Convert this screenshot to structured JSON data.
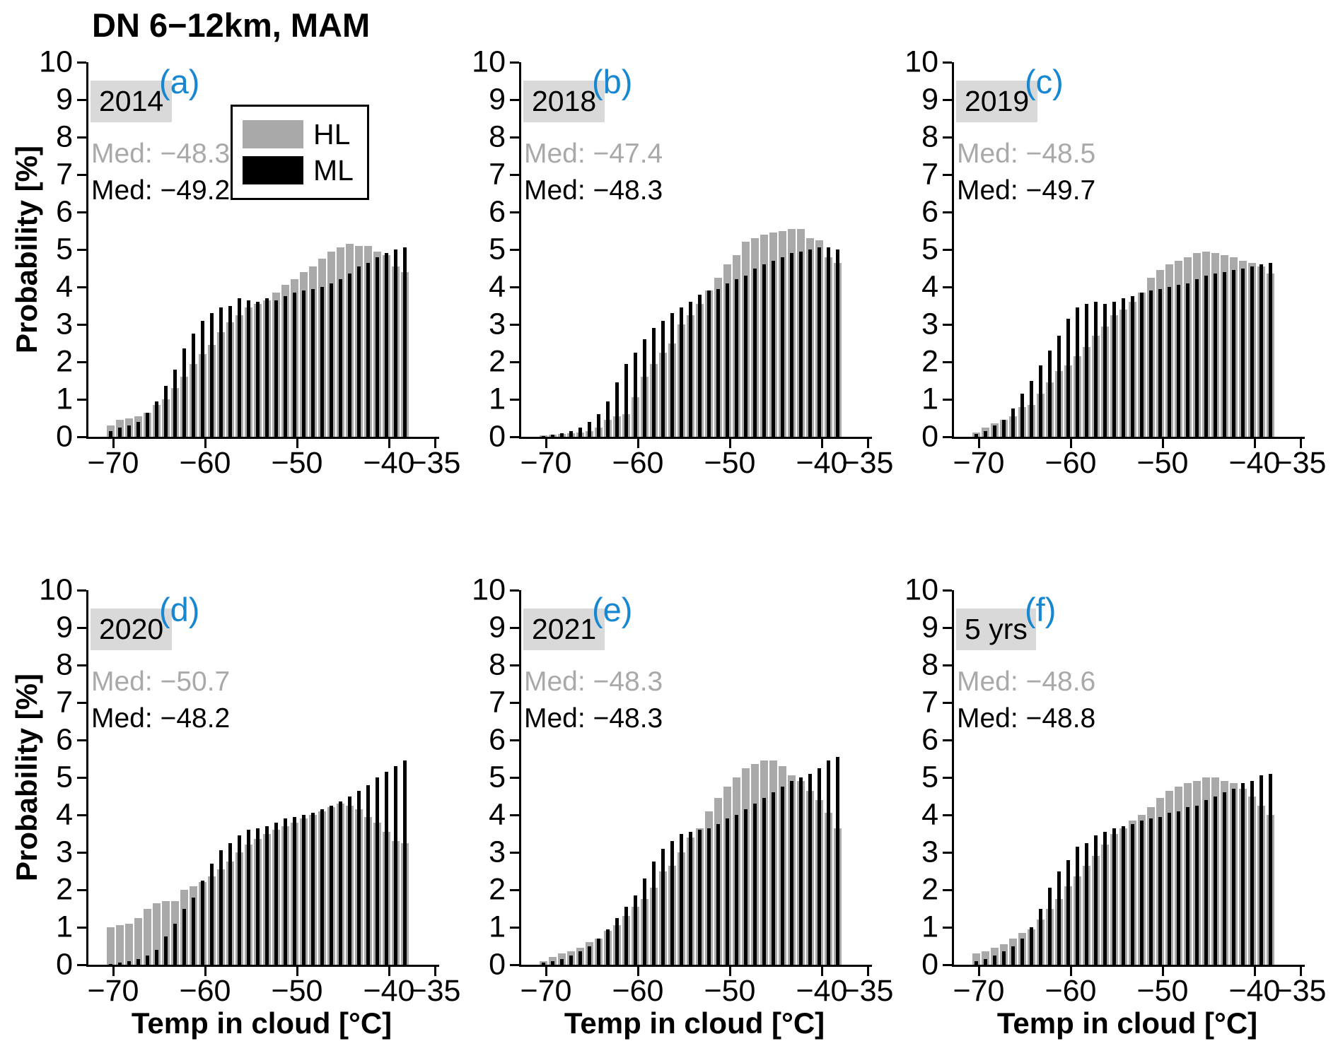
{
  "title": "DN 6−12km, MAM",
  "ylabel": "Probability [%]",
  "xlabel": "Temp in cloud [°C]",
  "legend": {
    "hl_label": "HL",
    "ml_label": "ML"
  },
  "colors": {
    "hl_bar": "#a9a9a9",
    "ml_bar": "#000000",
    "panel_letter": "#1787d1",
    "badge_bg": "#d9d9d9",
    "med_hl_text": "#a9a9a9",
    "med_ml_text": "#000000"
  },
  "axes": {
    "ylim": [
      0,
      10
    ],
    "y_ticks": [
      0,
      1,
      2,
      3,
      4,
      5,
      6,
      7,
      8,
      9,
      10
    ],
    "x_ticks": [
      {
        "value": -70,
        "label": "−70"
      },
      {
        "value": -60,
        "label": "−60"
      },
      {
        "value": -50,
        "label": "−50"
      },
      {
        "value": -40,
        "label": "−40"
      },
      {
        "value": -35,
        "label": "−35"
      }
    ],
    "x_bin_start": -70.3,
    "x_bin_step": 1,
    "x_unit": "°C"
  },
  "chart_data": [
    {
      "type": "bar",
      "letter": "(a)",
      "year": "2014",
      "med_hl": "Med: −48.3",
      "med_ml": "Med: −49.2",
      "series": [
        {
          "name": "HL",
          "values": [
            0.3,
            0.45,
            0.5,
            0.55,
            0.65,
            0.85,
            1.0,
            1.3,
            1.6,
            1.95,
            2.2,
            2.45,
            2.8,
            3.05,
            3.25,
            3.45,
            3.55,
            3.65,
            3.85,
            4.05,
            4.2,
            4.4,
            4.55,
            4.75,
            4.95,
            5.05,
            5.15,
            5.1,
            5.1,
            4.95,
            4.85,
            4.55,
            4.4
          ]
        },
        {
          "name": "ML",
          "values": [
            0.15,
            0.25,
            0.3,
            0.4,
            0.65,
            0.95,
            1.35,
            1.8,
            2.35,
            2.75,
            3.1,
            3.3,
            3.45,
            3.5,
            3.7,
            3.65,
            3.6,
            3.7,
            3.65,
            3.75,
            3.85,
            3.9,
            3.95,
            4.0,
            4.1,
            4.2,
            4.35,
            4.55,
            4.65,
            4.8,
            4.9,
            5.0,
            5.05
          ]
        }
      ]
    },
    {
      "type": "bar",
      "letter": "(b)",
      "year": "2018",
      "med_hl": "Med: −47.4",
      "med_ml": "Med: −48.3",
      "series": [
        {
          "name": "HL",
          "values": [
            0.03,
            0.05,
            0.07,
            0.1,
            0.12,
            0.15,
            0.25,
            0.45,
            0.55,
            0.6,
            1.05,
            1.6,
            1.95,
            2.25,
            2.5,
            3.0,
            3.25,
            3.55,
            3.9,
            4.25,
            4.6,
            4.85,
            5.2,
            5.3,
            5.4,
            5.45,
            5.5,
            5.55,
            5.55,
            5.3,
            5.25,
            4.8,
            4.65
          ]
        },
        {
          "name": "ML",
          "values": [
            0.02,
            0.05,
            0.1,
            0.15,
            0.25,
            0.4,
            0.6,
            0.95,
            1.45,
            1.95,
            2.25,
            2.6,
            2.9,
            3.1,
            3.3,
            3.45,
            3.6,
            3.8,
            3.9,
            3.95,
            4.1,
            4.2,
            4.3,
            4.5,
            4.6,
            4.7,
            4.8,
            4.9,
            4.95,
            5.0,
            5.05,
            5.05,
            5.0
          ]
        }
      ]
    },
    {
      "type": "bar",
      "letter": "(c)",
      "year": "2019",
      "med_hl": "Med: −48.5",
      "med_ml": "Med: −49.7",
      "series": [
        {
          "name": "HL",
          "values": [
            0.12,
            0.25,
            0.35,
            0.45,
            0.55,
            0.8,
            0.85,
            1.15,
            1.45,
            1.75,
            1.9,
            2.15,
            2.4,
            2.7,
            2.95,
            3.25,
            3.4,
            3.6,
            3.85,
            4.25,
            4.45,
            4.6,
            4.7,
            4.8,
            4.9,
            4.95,
            4.9,
            4.85,
            4.8,
            4.7,
            4.65,
            4.55,
            4.35
          ]
        },
        {
          "name": "ML",
          "values": [
            0.08,
            0.15,
            0.3,
            0.45,
            0.75,
            1.15,
            1.5,
            1.9,
            2.3,
            2.7,
            3.15,
            3.45,
            3.55,
            3.6,
            3.55,
            3.6,
            3.7,
            3.75,
            3.85,
            3.9,
            3.95,
            4.0,
            4.05,
            4.1,
            4.2,
            4.3,
            4.35,
            4.4,
            4.45,
            4.5,
            4.55,
            4.6,
            4.65
          ]
        }
      ]
    },
    {
      "type": "bar",
      "letter": "(d)",
      "year": "2020",
      "med_hl": "Med: −50.7",
      "med_ml": "Med: −48.2",
      "series": [
        {
          "name": "HL",
          "values": [
            1.0,
            1.05,
            1.1,
            1.25,
            1.5,
            1.65,
            1.7,
            1.7,
            2.0,
            2.1,
            2.2,
            2.35,
            2.55,
            2.75,
            3.0,
            3.2,
            3.35,
            3.5,
            3.6,
            3.7,
            3.8,
            3.9,
            4.0,
            4.1,
            4.2,
            4.3,
            4.25,
            4.15,
            3.95,
            3.8,
            3.55,
            3.3,
            3.25
          ]
        },
        {
          "name": "ML",
          "values": [
            0.02,
            0.05,
            0.1,
            0.15,
            0.25,
            0.4,
            0.75,
            1.1,
            1.5,
            1.8,
            2.25,
            2.7,
            3.05,
            3.25,
            3.45,
            3.6,
            3.65,
            3.7,
            3.8,
            3.9,
            3.95,
            4.0,
            4.05,
            4.15,
            4.25,
            4.35,
            4.5,
            4.65,
            4.8,
            5.0,
            5.15,
            5.3,
            5.45
          ]
        }
      ]
    },
    {
      "type": "bar",
      "letter": "(e)",
      "year": "2021",
      "med_hl": "Med: −48.3",
      "med_ml": "Med: −48.3",
      "series": [
        {
          "name": "HL",
          "values": [
            0.1,
            0.2,
            0.3,
            0.35,
            0.45,
            0.6,
            0.7,
            0.9,
            1.05,
            1.3,
            1.55,
            1.75,
            2.05,
            2.5,
            2.65,
            3.0,
            3.4,
            3.65,
            4.1,
            4.45,
            4.75,
            5.0,
            5.25,
            5.35,
            5.45,
            5.45,
            5.3,
            5.05,
            4.9,
            4.65,
            4.4,
            4.05,
            3.65
          ]
        },
        {
          "name": "ML",
          "values": [
            0.05,
            0.1,
            0.15,
            0.25,
            0.35,
            0.5,
            0.7,
            0.95,
            1.25,
            1.55,
            1.85,
            2.3,
            2.75,
            3.1,
            3.3,
            3.5,
            3.55,
            3.6,
            3.65,
            3.75,
            3.9,
            4.0,
            4.15,
            4.3,
            4.45,
            4.6,
            4.75,
            4.9,
            5.0,
            5.1,
            5.25,
            5.45,
            5.55
          ]
        }
      ]
    },
    {
      "type": "bar",
      "letter": "(f)",
      "year": "5 yrs",
      "med_hl": "Med: −48.6",
      "med_ml": "Med: −48.8",
      "series": [
        {
          "name": "HL",
          "values": [
            0.3,
            0.35,
            0.45,
            0.55,
            0.7,
            0.85,
            0.95,
            1.2,
            1.5,
            1.75,
            2.1,
            2.35,
            2.65,
            2.9,
            3.2,
            3.5,
            3.65,
            3.85,
            4.0,
            4.2,
            4.45,
            4.65,
            4.75,
            4.85,
            4.9,
            5.0,
            5.0,
            4.9,
            4.85,
            4.7,
            4.5,
            4.25,
            4.0
          ]
        },
        {
          "name": "ML",
          "values": [
            0.1,
            0.15,
            0.25,
            0.35,
            0.5,
            0.7,
            1.0,
            1.5,
            2.05,
            2.5,
            2.8,
            3.15,
            3.25,
            3.45,
            3.55,
            3.65,
            3.7,
            3.75,
            3.85,
            3.9,
            3.95,
            4.05,
            4.1,
            4.2,
            4.25,
            4.4,
            4.5,
            4.6,
            4.7,
            4.85,
            4.9,
            5.05,
            5.1
          ]
        }
      ]
    }
  ]
}
